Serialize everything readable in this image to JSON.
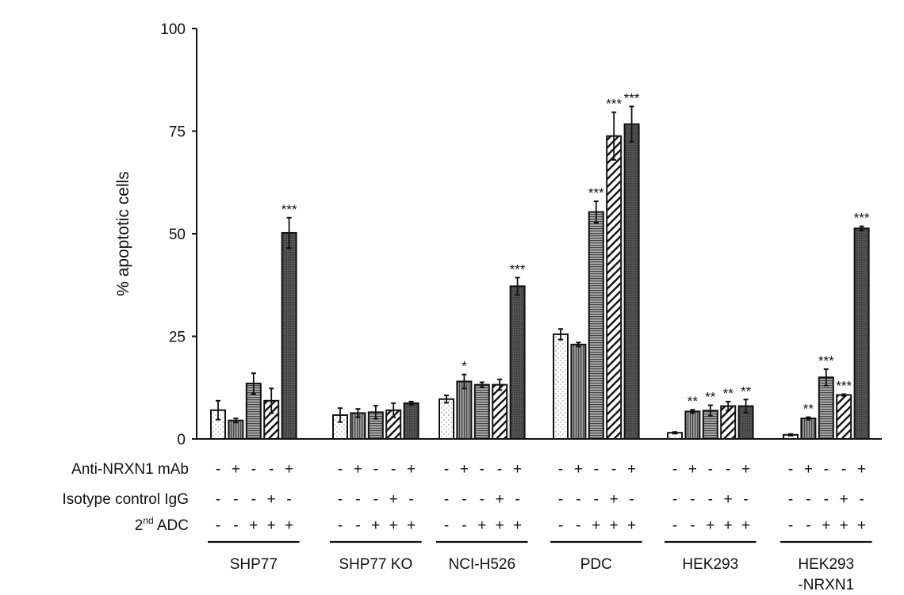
{
  "chart_data": {
    "type": "bar",
    "title": "",
    "xlabel": "",
    "ylabel": "% apoptotic cells",
    "ylim": [
      0,
      100
    ],
    "yticks": [
      0,
      25,
      50,
      75,
      100
    ],
    "grid": false,
    "categories": [
      "SHP77",
      "SHP77 KO",
      "NCI-H526",
      "PDC",
      "HEK293",
      "HEK293\n-NRXN1"
    ],
    "category_lines": [
      [
        "SHP77"
      ],
      [
        "SHP77 KO"
      ],
      [
        "NCI-H526"
      ],
      [
        "PDC"
      ],
      [
        "HEK293"
      ],
      [
        "HEK293",
        "-NRXN1"
      ]
    ],
    "conditions": [
      {
        "label": "Anti-NRXN1 mAb",
        "signs": [
          "-",
          "+",
          "-",
          "-",
          "+"
        ]
      },
      {
        "label": "Isotype control IgG",
        "signs": [
          "-",
          "-",
          "-",
          "+",
          "-"
        ]
      },
      {
        "label": "2nd ADC",
        "label_main": "2",
        "label_sup": "nd",
        "label_rest": " ADC",
        "signs": [
          "-",
          "-",
          "+",
          "+",
          "+"
        ]
      }
    ],
    "series": [
      {
        "pattern": "dots",
        "values": [
          7.0,
          5.8,
          9.7,
          25.5,
          1.5,
          1.0
        ],
        "errors": [
          2.3,
          1.7,
          0.9,
          1.3,
          0.2,
          0.2
        ],
        "significance": [
          "",
          "",
          "",
          "",
          "",
          ""
        ]
      },
      {
        "pattern": "vertical",
        "values": [
          4.5,
          6.3,
          14.0,
          23.0,
          6.7,
          5.0
        ],
        "errors": [
          0.5,
          1.0,
          1.7,
          0.5,
          0.4,
          0.3
        ],
        "significance": [
          "",
          "",
          "*",
          "",
          "**",
          "**"
        ]
      },
      {
        "pattern": "horizontal",
        "values": [
          13.5,
          6.5,
          13.2,
          55.3,
          6.9,
          15.0
        ],
        "errors": [
          2.5,
          1.6,
          0.6,
          2.6,
          1.3,
          2.0
        ],
        "significance": [
          "",
          "",
          "",
          "***",
          "**",
          "***"
        ]
      },
      {
        "pattern": "diagonal",
        "values": [
          9.3,
          7.0,
          13.2,
          73.8,
          8.0,
          10.7
        ],
        "errors": [
          3.0,
          1.7,
          1.3,
          5.8,
          1.1,
          0.2
        ],
        "significance": [
          "",
          "",
          "",
          "***",
          "**",
          "***"
        ]
      },
      {
        "pattern": "dark",
        "values": [
          50.2,
          8.7,
          37.2,
          76.7,
          8.0,
          51.3
        ],
        "errors": [
          3.7,
          0.4,
          2.1,
          4.3,
          1.6,
          0.5
        ],
        "significance": [
          "***",
          "",
          "***",
          "***",
          "**",
          "***"
        ]
      }
    ]
  }
}
